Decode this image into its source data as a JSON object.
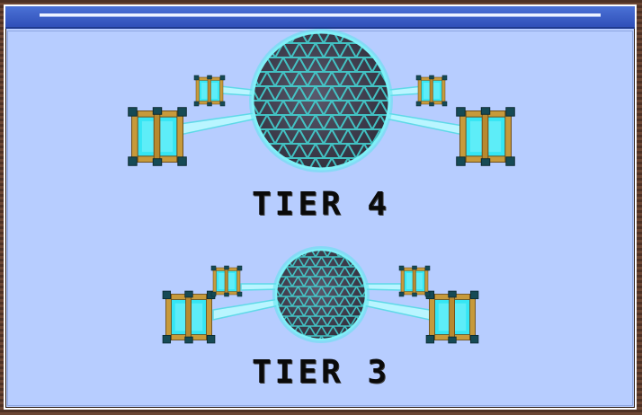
{
  "window": {
    "title": ""
  },
  "tiers": [
    {
      "label": "TIER 4"
    },
    {
      "label": "TIER 3"
    }
  ],
  "colors": {
    "background": "#b7cdff",
    "titlebar": "#3a5fc8",
    "sphere_core": "#4b4a5c",
    "sphere_grid": "#3fc7c7",
    "beam": "#b9f5ff",
    "cube_glass": "#35e6f4",
    "cube_frame": "#c79a3b",
    "cube_corner": "#164a55",
    "text": "#0a0a0a"
  },
  "icons": [
    "dyson-sphere-icon",
    "collector-cube-icon",
    "energy-beam-icon"
  ]
}
